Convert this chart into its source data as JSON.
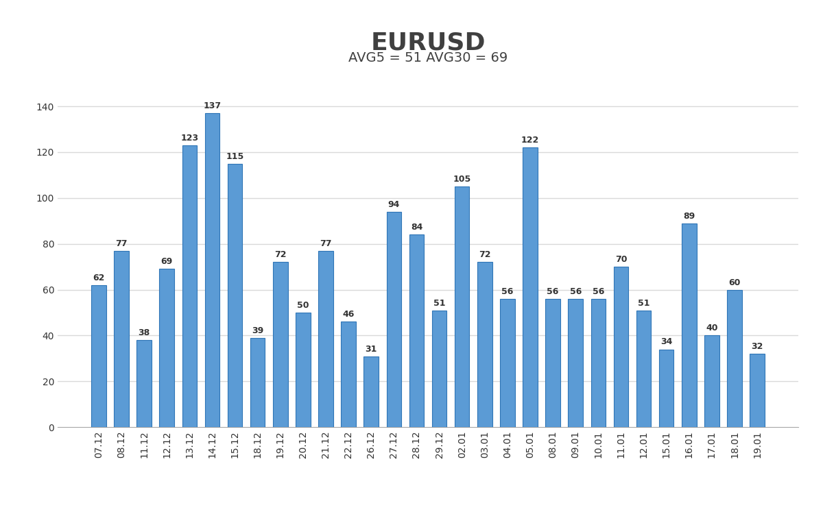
{
  "title": "EURUSD",
  "subtitle": "AVG5 = 51 AVG30 = 69",
  "categories": [
    "07.12",
    "08.12",
    "11.12",
    "12.12",
    "13.12",
    "14.12",
    "15.12",
    "18.12",
    "19.12",
    "20.12",
    "21.12",
    "22.12",
    "26.12",
    "27.12",
    "28.12",
    "29.12",
    "02.01",
    "03.01",
    "04.01",
    "05.01",
    "08.01",
    "09.01",
    "10.01",
    "11.01",
    "12.01",
    "15.01",
    "16.01",
    "17.01",
    "18.01",
    "19.01"
  ],
  "values": [
    62,
    77,
    38,
    69,
    123,
    137,
    115,
    39,
    72,
    50,
    77,
    46,
    31,
    94,
    84,
    51,
    105,
    72,
    56,
    122,
    56,
    56,
    56,
    70,
    51,
    34,
    89,
    40,
    60,
    32
  ],
  "bar_color": "#5B9BD5",
  "bar_edge_color": "#2E75B6",
  "background_color": "#FFFFFF",
  "title_fontsize": 26,
  "subtitle_fontsize": 14,
  "tick_fontsize": 10,
  "value_fontsize": 9,
  "ylim": [
    0,
    150
  ],
  "yticks": [
    0,
    20,
    40,
    60,
    80,
    100,
    120,
    140
  ],
  "grid_color": "#D9D9D9",
  "grid_linewidth": 1.0,
  "title_color": "#404040",
  "subtitle_color": "#404040"
}
